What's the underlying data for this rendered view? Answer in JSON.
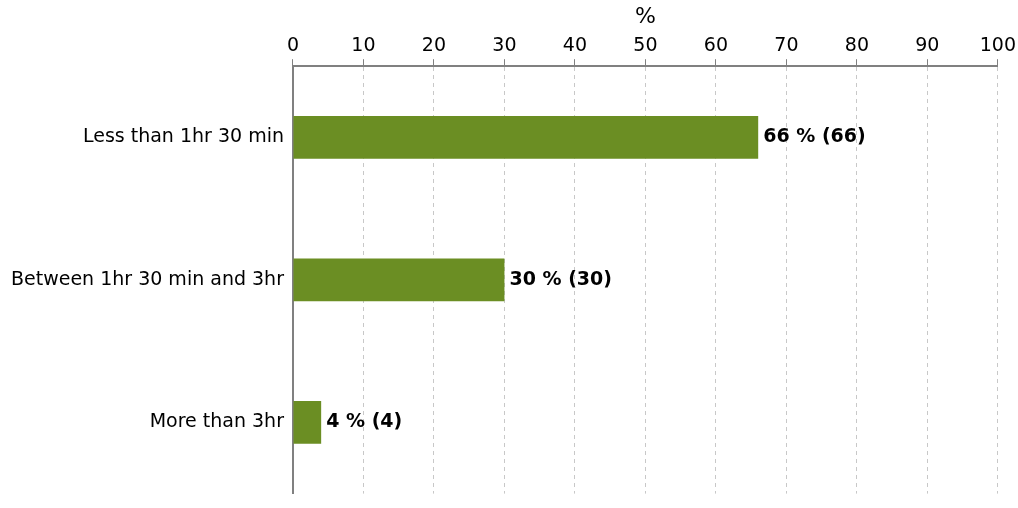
{
  "chart_data": {
    "type": "bar",
    "orientation": "horizontal",
    "xlabel": "%",
    "categories": [
      "Less than 1hr 30 min",
      "Between 1hr 30 min and 3hr",
      "More than 3hr"
    ],
    "values": [
      66,
      30,
      4
    ],
    "color": "#6b8e23",
    "value_labels": [
      "66 % (66)",
      "30 % (30)",
      "4 % (4)"
    ],
    "xlim": [
      0,
      100
    ],
    "xticks": [
      0,
      10,
      20,
      30,
      40,
      50,
      60,
      70,
      80,
      90,
      100
    ],
    "grid": "x",
    "legend": false
  }
}
